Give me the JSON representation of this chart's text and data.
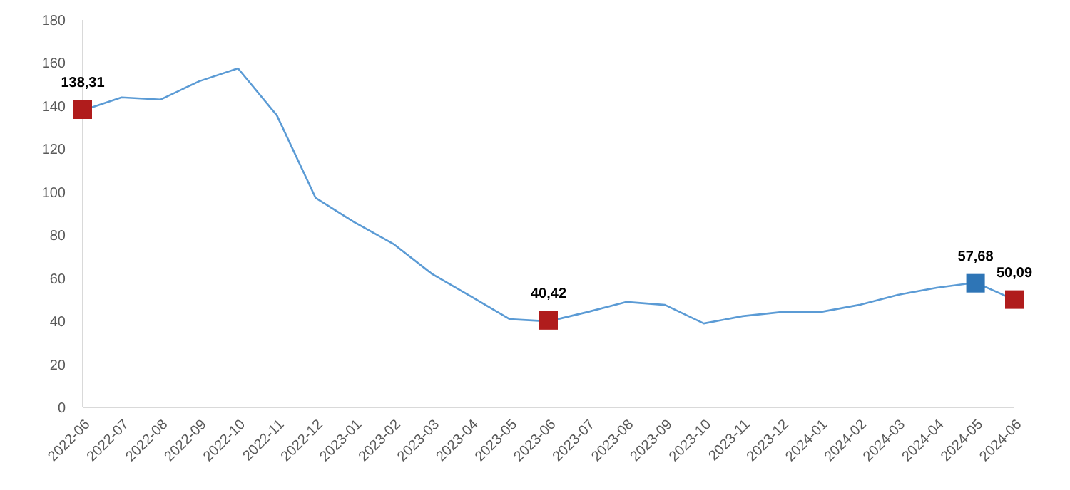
{
  "chart_data": {
    "type": "line",
    "categories": [
      "2022-06",
      "2022-07",
      "2022-08",
      "2022-09",
      "2022-10",
      "2022-11",
      "2022-12",
      "2023-01",
      "2023-02",
      "2023-03",
      "2023-04",
      "2023-05",
      "2023-06",
      "2023-07",
      "2023-08",
      "2023-09",
      "2023-10",
      "2023-11",
      "2023-12",
      "2024-01",
      "2024-02",
      "2024-03",
      "2024-04",
      "2024-05",
      "2024-06"
    ],
    "ylim": [
      0,
      180
    ],
    "yticks": [
      0,
      20,
      40,
      60,
      80,
      100,
      120,
      140,
      160,
      180
    ],
    "grid": false,
    "series": [
      {
        "type": "line",
        "color": "#5b9bd5",
        "marker": "none",
        "line_style": "solid",
        "values": [
          138,
          144,
          143,
          151.5,
          157.5,
          135.7,
          97.3,
          86,
          76,
          62,
          51.6,
          41,
          40,
          44.3,
          49,
          47.6,
          39,
          42.4,
          44.3,
          44.3,
          47.6,
          52.3,
          55.6,
          58,
          50
        ]
      },
      {
        "type": "scatter",
        "marker": "square",
        "values": [
          138.31,
          null,
          null,
          null,
          null,
          null,
          null,
          null,
          null,
          null,
          null,
          null,
          40.42,
          null,
          null,
          null,
          null,
          null,
          null,
          null,
          null,
          null,
          null,
          57.68,
          50.09
        ],
        "colors": [
          "#b01c1c",
          null,
          null,
          null,
          null,
          null,
          null,
          null,
          null,
          null,
          null,
          null,
          "#b01c1c",
          null,
          null,
          null,
          null,
          null,
          null,
          null,
          null,
          null,
          null,
          "#2e75b6",
          "#b01c1c"
        ],
        "value_labels": [
          "138,31",
          null,
          null,
          null,
          null,
          null,
          null,
          null,
          null,
          null,
          null,
          null,
          "40,42",
          null,
          null,
          null,
          null,
          null,
          null,
          null,
          null,
          null,
          null,
          "57,68",
          "50,09"
        ]
      }
    ]
  }
}
